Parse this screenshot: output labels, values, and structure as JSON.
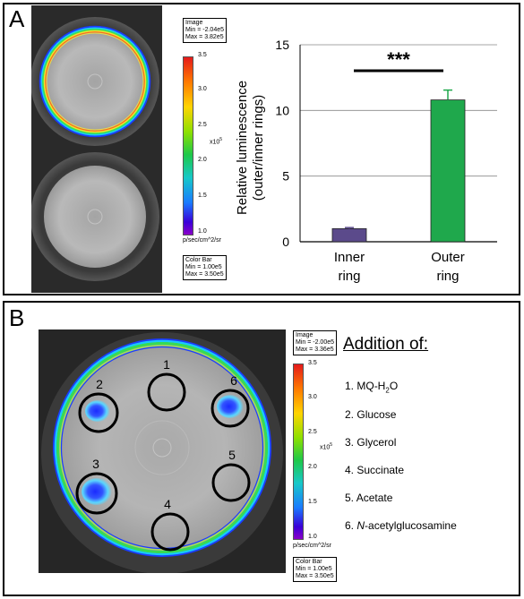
{
  "panelA": {
    "letter": "A",
    "image_box": {
      "title": "Image",
      "min": "Min = -2.04e5",
      "max": "Max = 3.82e5"
    },
    "colorbar": {
      "ticks": [
        "3.5",
        "3.0",
        "2.5",
        "2.0",
        "1.5",
        "1.0"
      ],
      "exponent": "x10",
      "exp_sup": "5",
      "units": "p/sec/cm^2/sr"
    },
    "colorbar_box": {
      "title": "Color Bar",
      "min": "Min = 1.00e5",
      "max": "Max = 3.50e5"
    }
  },
  "chart_data": {
    "type": "bar",
    "categories": [
      "Inner ring",
      "Outer ring"
    ],
    "category_lines": [
      [
        "Inner",
        "ring"
      ],
      [
        "Outer",
        "ring"
      ]
    ],
    "values": [
      1.0,
      10.8
    ],
    "errors": [
      0.08,
      0.75
    ],
    "colors": [
      "#5b4a8b",
      "#1fa84c"
    ],
    "ylabel_lines": [
      "Relative luminescence",
      "(outer/inner rings)"
    ],
    "yticks": [
      "0",
      "5",
      "10",
      "15"
    ],
    "ylim": [
      0,
      15
    ],
    "grid": true,
    "significance": "***"
  },
  "panelB": {
    "letter": "B",
    "image_box": {
      "title": "Image",
      "min": "Min = -2.00e5",
      "max": "Max = 3.36e5"
    },
    "colorbar": {
      "ticks": [
        "3.5",
        "3.0",
        "2.5",
        "2.0",
        "1.5",
        "1.0"
      ],
      "exponent": "x10",
      "exp_sup": "5",
      "units": "p/sec/cm^2/sr"
    },
    "colorbar_box": {
      "title": "Color Bar",
      "min": "Min = 1.00e5",
      "max": "Max = 3.50e5"
    },
    "wells": [
      "1",
      "2",
      "3",
      "4",
      "5",
      "6"
    ],
    "legend_title": "Addition of:",
    "legend": [
      {
        "num": "1.",
        "text": "MQ-H",
        "sub": "2",
        "tail": "O"
      },
      {
        "num": "2.",
        "text": "Glucose"
      },
      {
        "num": "3.",
        "text": "Glycerol"
      },
      {
        "num": "4.",
        "text": "Succinate"
      },
      {
        "num": "5.",
        "text": "Acetate"
      },
      {
        "num": "6.",
        "text": "N",
        "italic": true,
        "tail": "-acetylglucosamine"
      }
    ]
  }
}
